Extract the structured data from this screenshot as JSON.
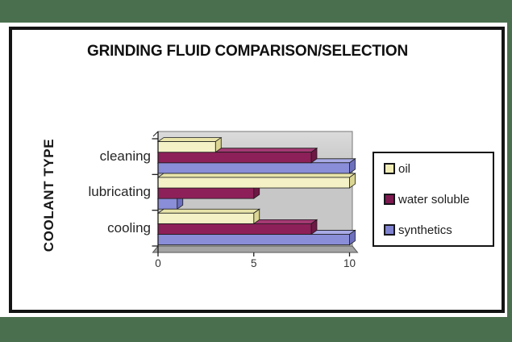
{
  "canvas": {
    "background_color": "#4A6F4E",
    "page_color": "#FFFFFF",
    "frame_color": "#141414"
  },
  "chart_data": {
    "type": "bar",
    "orientation": "horizontal",
    "style": "3d",
    "title": "GRINDING FLUID COMPARISON/SELECTION",
    "ylabel": "COOLANT TYPE",
    "xlabel": "",
    "categories": [
      "cleaning",
      "lubricating",
      "cooling"
    ],
    "series": [
      {
        "name": "oil",
        "values": [
          3,
          10,
          5
        ],
        "front": "#F4F1C6",
        "top_face": "#E8E4AA",
        "end_face": "#DCD693",
        "swatch": "#F1EDB5"
      },
      {
        "name": "water soluble",
        "values": [
          8,
          5,
          8
        ],
        "front": "#8E2059",
        "top_face": "#A53A74",
        "end_face": "#6F1745",
        "swatch": "#7D1A50"
      },
      {
        "name": "synthetics",
        "values": [
          10,
          1,
          10
        ],
        "front": "#8A8DD8",
        "top_face": "#A8AAE6",
        "end_face": "#6D70BE",
        "swatch": "#7F82CE"
      }
    ],
    "xlim": [
      0,
      10
    ],
    "xticks": [
      0,
      5,
      10
    ],
    "legend_position": "right",
    "grid": false,
    "plot": {
      "wall": "#C7C7C7",
      "wall_top": "#DBDBDB",
      "floor": "#A4A4A4",
      "outline": "#777777",
      "axis": "#1E1E1E",
      "tick_label_color": "#333333"
    }
  }
}
